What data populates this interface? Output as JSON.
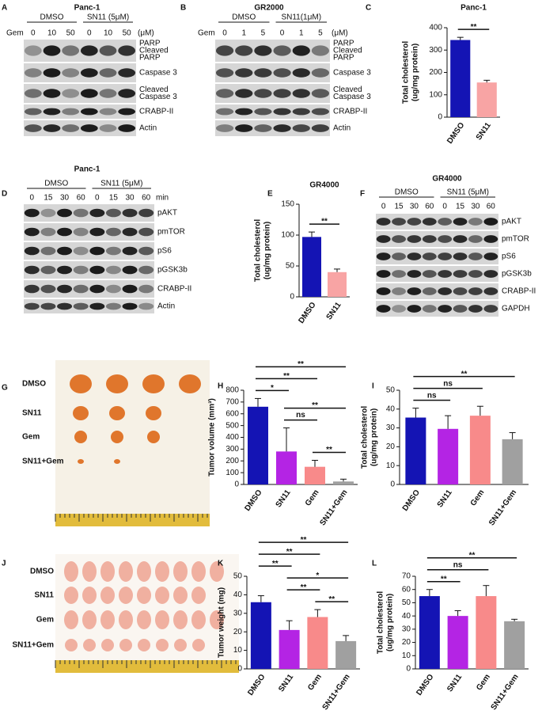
{
  "blots": [
    {
      "letter": "A",
      "title": "Panc-1",
      "groups": [
        "DMSO",
        "SN11 (5μM)"
      ],
      "treatment": "Gem",
      "doses": [
        "0",
        "10",
        "50",
        "0",
        "10",
        "50"
      ],
      "unit": "(μM)",
      "bands": [
        [
          "PARP",
          "Cleaved",
          "PARP"
        ],
        [
          "Caspase 3"
        ],
        [
          "Cleaved",
          "Caspase 3"
        ],
        [
          "CRABP-II"
        ],
        [
          "Actin"
        ]
      ]
    },
    {
      "letter": "B",
      "title": "GR2000",
      "groups": [
        "DMSO",
        "SN11(1μM)"
      ],
      "treatment": "Gem",
      "doses": [
        "0",
        "1",
        "5",
        "0",
        "1",
        "5"
      ],
      "unit": "(μM)",
      "bands": [
        [
          "PARP",
          "Cleaved",
          "PARP"
        ],
        [
          "Caspase 3"
        ],
        [
          "Cleaved",
          "Caspase 3"
        ],
        [
          "CRABP-II"
        ],
        [
          "Actin"
        ]
      ]
    },
    {
      "letter": "D",
      "title": "Panc-1",
      "groups": [
        "DMSO",
        "SN11 (5μM)"
      ],
      "doses": [
        "0",
        "15",
        "30",
        "60",
        "0",
        "15",
        "30",
        "60"
      ],
      "unit": "min",
      "bands": [
        [
          "pAKT"
        ],
        [
          "pmTOR"
        ],
        [
          "pS6"
        ],
        [
          "pGSK3b"
        ],
        [
          "CRABP-II"
        ],
        [
          "Actin"
        ]
      ]
    },
    {
      "letter": "F",
      "title": "GR4000",
      "groups": [
        "DMSO",
        "SN11 (5μM)"
      ],
      "doses": [
        "0",
        "15",
        "30",
        "60",
        "0",
        "15",
        "30",
        "60"
      ],
      "bands": [
        [
          "pAKT"
        ],
        [
          "pmTOR"
        ],
        [
          "pS6"
        ],
        [
          "pGSK3b"
        ],
        [
          "CRABP-II"
        ],
        [
          "GAPDH"
        ]
      ]
    }
  ],
  "photos": [
    {
      "letter": "G",
      "rows": [
        "DMSO",
        "SN11",
        "Gem",
        "SN11+Gem"
      ]
    },
    {
      "letter": "J",
      "rows": [
        "DMSO",
        "SN11",
        "Gem",
        "SN11+Gem"
      ]
    }
  ],
  "chart_data": [
    {
      "type": "bar",
      "letter": "C",
      "title": "Panc-1",
      "ylabel": [
        "Total cholesterol",
        "(ug/mg protein)"
      ],
      "categories": [
        "DMSO",
        "SN11"
      ],
      "values": [
        345,
        155
      ],
      "errors": [
        12,
        10
      ],
      "colors": [
        "#1414b4",
        "#f8a4a4"
      ],
      "ylim": [
        0,
        400
      ],
      "yticks": [
        0,
        100,
        200,
        300,
        400
      ],
      "significance": [
        {
          "from": 0,
          "to": 1,
          "label": "**"
        }
      ]
    },
    {
      "type": "bar",
      "letter": "E",
      "title": "GR4000",
      "ylabel": [
        "Total cholesterol",
        "(ug/mg protein)"
      ],
      "categories": [
        "DMSO",
        "SN11"
      ],
      "values": [
        97,
        40
      ],
      "errors": [
        8,
        5
      ],
      "colors": [
        "#1414b4",
        "#f8a4a4"
      ],
      "ylim": [
        0,
        150
      ],
      "yticks": [
        0,
        50,
        100,
        150
      ],
      "significance": [
        {
          "from": 0,
          "to": 1,
          "label": "**"
        }
      ]
    },
    {
      "type": "bar",
      "letter": "H",
      "ylabel": [
        "Tumor volume (mm³)"
      ],
      "categories": [
        "DMSO",
        "SN11",
        "Gem",
        "SN11+Gem"
      ],
      "values": [
        660,
        280,
        150,
        25
      ],
      "errors": [
        70,
        200,
        55,
        20
      ],
      "colors": [
        "#1414b4",
        "#b424e4",
        "#f88a8a",
        "#a0a0a0"
      ],
      "ylim": [
        0,
        800
      ],
      "yticks": [
        0,
        100,
        200,
        300,
        400,
        500,
        600,
        700,
        800
      ],
      "significance": [
        {
          "from": 2,
          "to": 3,
          "label": "**"
        },
        {
          "from": 1,
          "to": 2,
          "label": "ns"
        },
        {
          "from": 1,
          "to": 3,
          "label": "**"
        },
        {
          "from": 0,
          "to": 1,
          "label": "*"
        },
        {
          "from": 0,
          "to": 2,
          "label": "**"
        },
        {
          "from": 0,
          "to": 3,
          "label": "**"
        }
      ]
    },
    {
      "type": "bar",
      "letter": "I",
      "ylabel": [
        "Total cholesterol",
        "(ug/mg protein)"
      ],
      "categories": [
        "DMSO",
        "SN11",
        "Gem",
        "SN11+Gem"
      ],
      "values": [
        35.5,
        29.5,
        36.5,
        24
      ],
      "errors": [
        5,
        7,
        5,
        3.5
      ],
      "colors": [
        "#1414b4",
        "#b424e4",
        "#f88a8a",
        "#a0a0a0"
      ],
      "ylim": [
        0,
        50
      ],
      "yticks": [
        0,
        10,
        20,
        30,
        40,
        50
      ],
      "significance": [
        {
          "from": 0,
          "to": 1,
          "label": "ns"
        },
        {
          "from": 0,
          "to": 2,
          "label": "ns"
        },
        {
          "from": 0,
          "to": 3,
          "label": "**"
        }
      ]
    },
    {
      "type": "bar",
      "letter": "K",
      "ylabel": [
        "Tumor weight (mg)"
      ],
      "categories": [
        "DMSO",
        "SN11",
        "Gem",
        "SN11+Gem"
      ],
      "values": [
        36,
        21,
        28,
        15
      ],
      "errors": [
        3.5,
        5,
        4,
        3
      ],
      "colors": [
        "#1414b4",
        "#b424e4",
        "#f88a8a",
        "#a0a0a0"
      ],
      "ylim": [
        0,
        50
      ],
      "yticks": [
        0,
        10,
        20,
        30,
        40,
        50
      ],
      "significance": [
        {
          "from": 2,
          "to": 3,
          "label": "**"
        },
        {
          "from": 1,
          "to": 2,
          "label": "**"
        },
        {
          "from": 1,
          "to": 3,
          "label": "*"
        },
        {
          "from": 0,
          "to": 1,
          "label": "**"
        },
        {
          "from": 0,
          "to": 2,
          "label": "**"
        },
        {
          "from": 0,
          "to": 3,
          "label": "**"
        }
      ]
    },
    {
      "type": "bar",
      "letter": "L",
      "ylabel": [
        "Total cholesterol",
        "(ug/mg protein)"
      ],
      "categories": [
        "DMSO",
        "SN11",
        "Gem",
        "SN11+Gem"
      ],
      "values": [
        55,
        40,
        55,
        36
      ],
      "errors": [
        5,
        4,
        8,
        1.5
      ],
      "colors": [
        "#1414b4",
        "#b424e4",
        "#f88a8a",
        "#a0a0a0"
      ],
      "ylim": [
        0,
        70
      ],
      "yticks": [
        0,
        10,
        20,
        30,
        40,
        50,
        60,
        70
      ],
      "significance": [
        {
          "from": 0,
          "to": 1,
          "label": "**"
        },
        {
          "from": 0,
          "to": 2,
          "label": "ns"
        },
        {
          "from": 0,
          "to": 3,
          "label": "**"
        }
      ]
    }
  ]
}
